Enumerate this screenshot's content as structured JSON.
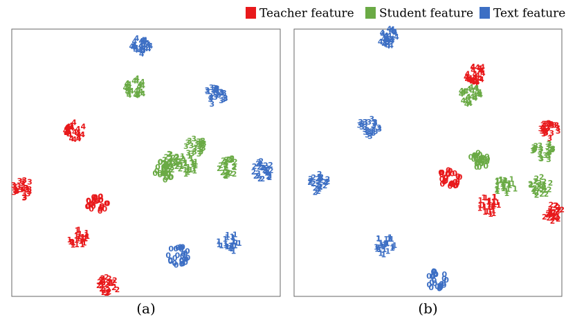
{
  "chart_data": [
    {
      "type": "cluster-scatter",
      "caption": "(a)",
      "xlim": [
        0,
        100
      ],
      "ylim": [
        0,
        100
      ],
      "series": [
        {
          "name": "Teacher feature",
          "color": "#e8191b",
          "x": [
            23,
            4,
            32,
            25,
            36
          ],
          "y": [
            62,
            40,
            34,
            22,
            4
          ],
          "labels": [
            "4",
            "3",
            "0",
            "1",
            "2"
          ]
        },
        {
          "name": "Student feature",
          "color": "#6aaa45",
          "x": [
            46,
            68,
            60,
            57,
            65,
            81
          ],
          "y": [
            78,
            56,
            50,
            47,
            49,
            48
          ],
          "labels": [
            "4",
            "3",
            "2",
            "0",
            "1",
            "2"
          ]
        },
        {
          "name": "Text feature",
          "color": "#3d6fc4",
          "x": [
            48,
            76,
            94,
            81,
            62
          ],
          "y": [
            94,
            75,
            47,
            20,
            15
          ],
          "labels": [
            "4",
            "3",
            "2",
            "1",
            "0"
          ]
        }
      ]
    },
    {
      "type": "cluster-scatter",
      "caption": "(b)",
      "xlim": [
        0,
        100
      ],
      "ylim": [
        0,
        100
      ],
      "series": [
        {
          "color": "#e8191b",
          "x": [
            68,
            96,
            58,
            73,
            97
          ],
          "y": [
            83,
            62,
            44,
            34,
            31
          ],
          "labels": [
            "4",
            "3",
            "0",
            "1",
            "2"
          ]
        },
        {
          "color": "#6aaa45",
          "x": [
            66,
            93,
            69,
            79,
            92
          ],
          "y": [
            75,
            54,
            51,
            41,
            41
          ],
          "labels": [
            "4",
            "3",
            "0",
            "1",
            "2"
          ]
        },
        {
          "color": "#3d6fc4",
          "x": [
            35,
            28,
            9,
            34,
            53
          ],
          "y": [
            97,
            63,
            42,
            19,
            6
          ],
          "labels": [
            "4",
            "3",
            "2",
            "1",
            "0"
          ]
        }
      ]
    }
  ]
}
